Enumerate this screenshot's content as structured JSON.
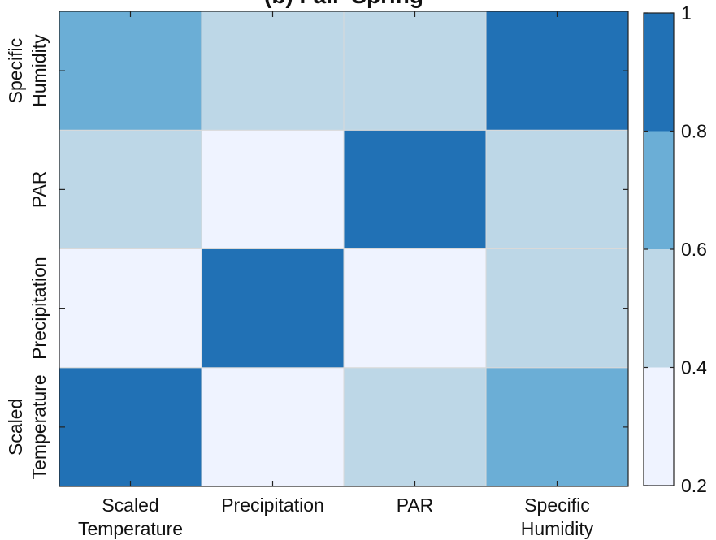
{
  "chart_data": {
    "type": "heatmap",
    "title": "(b) Fall–Spring",
    "x_categories": [
      [
        "Scaled",
        "Temperature"
      ],
      [
        "Precipitation"
      ],
      [
        "PAR"
      ],
      [
        "Specific",
        "Humidity"
      ]
    ],
    "y_categories": [
      [
        "Scaled",
        "Temperature"
      ],
      [
        "Precipitation"
      ],
      [
        "PAR"
      ],
      [
        "Specific",
        "Humidity"
      ]
    ],
    "values": [
      [
        1.0,
        0.3,
        0.5,
        0.7
      ],
      [
        0.3,
        1.0,
        0.3,
        0.5
      ],
      [
        0.5,
        0.3,
        1.0,
        0.5
      ],
      [
        0.7,
        0.5,
        0.5,
        1.0
      ]
    ],
    "colorbar": {
      "range": [
        0.2,
        1.0
      ],
      "ticks": [
        "0.2",
        "0.4",
        "0.6",
        "0.8",
        "1"
      ],
      "bins": [
        {
          "from": 0.2,
          "to": 0.4,
          "color": "#eff3ff"
        },
        {
          "from": 0.4,
          "to": 0.6,
          "color": "#bdd7e7"
        },
        {
          "from": 0.6,
          "to": 0.8,
          "color": "#6baed6"
        },
        {
          "from": 0.8,
          "to": 1.0,
          "color": "#2171b5"
        }
      ]
    },
    "grid_color": "#d9d9d9"
  }
}
